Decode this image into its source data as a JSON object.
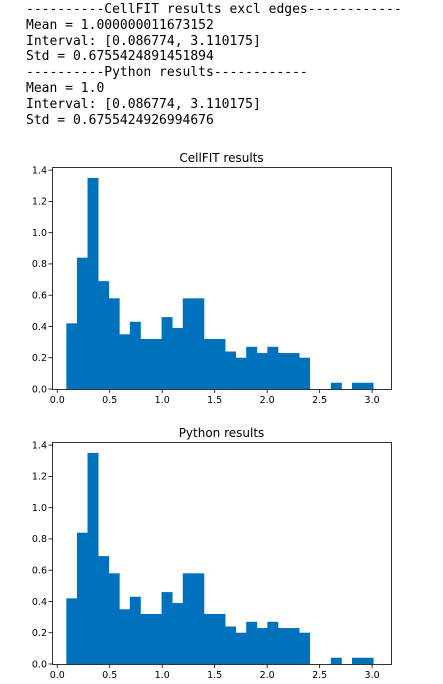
{
  "console_lines": [
    "----------CellFIT results excl edges------------",
    "Mean = 1.000000011673152",
    "Interval: [0.086774, 3.110175]",
    "Std = 0.6755424891451894",
    "----------Python results------------",
    "Mean = 1.0",
    "Interval: [0.086774, 3.110175]",
    "Std = 0.6755424926994676"
  ],
  "colors": {
    "bar": "#0072bd",
    "axis": "#000000",
    "text": "#000000"
  },
  "chart_data": [
    {
      "type": "bar",
      "title": "CellFIT results",
      "xlabel": "",
      "ylabel": "",
      "xlim": [
        -0.05,
        3.18
      ],
      "ylim": [
        0,
        1.42
      ],
      "xticks": [
        "0.0",
        "0.5",
        "1.0",
        "1.5",
        "2.0",
        "2.5",
        "3.0"
      ],
      "yticks": [
        "0.0",
        "0.2",
        "0.4",
        "0.6",
        "0.8",
        "1.0",
        "1.2",
        "1.4"
      ],
      "grid": false,
      "bin_start": 0.086774,
      "bin_width": 0.1008,
      "values": [
        0.42,
        0.84,
        1.35,
        0.69,
        0.58,
        0.35,
        0.43,
        0.32,
        0.32,
        0.46,
        0.39,
        0.58,
        0.58,
        0.32,
        0.32,
        0.24,
        0.2,
        0.27,
        0.23,
        0.27,
        0.23,
        0.23,
        0.2,
        0.0,
        0.0,
        0.04,
        0.0,
        0.04,
        0.04,
        0.0
      ]
    },
    {
      "type": "bar",
      "title": "Python results",
      "xlabel": "",
      "ylabel": "",
      "xlim": [
        -0.05,
        3.18
      ],
      "ylim": [
        0,
        1.42
      ],
      "xticks": [
        "0.0",
        "0.5",
        "1.0",
        "1.5",
        "2.0",
        "2.5",
        "3.0"
      ],
      "yticks": [
        "0.0",
        "0.2",
        "0.4",
        "0.6",
        "0.8",
        "1.0",
        "1.2",
        "1.4"
      ],
      "grid": false,
      "bin_start": 0.086774,
      "bin_width": 0.1008,
      "values": [
        0.42,
        0.84,
        1.35,
        0.69,
        0.58,
        0.35,
        0.43,
        0.32,
        0.32,
        0.46,
        0.39,
        0.58,
        0.58,
        0.32,
        0.32,
        0.24,
        0.2,
        0.27,
        0.23,
        0.27,
        0.23,
        0.23,
        0.2,
        0.0,
        0.0,
        0.04,
        0.0,
        0.04,
        0.04,
        0.0
      ]
    }
  ]
}
